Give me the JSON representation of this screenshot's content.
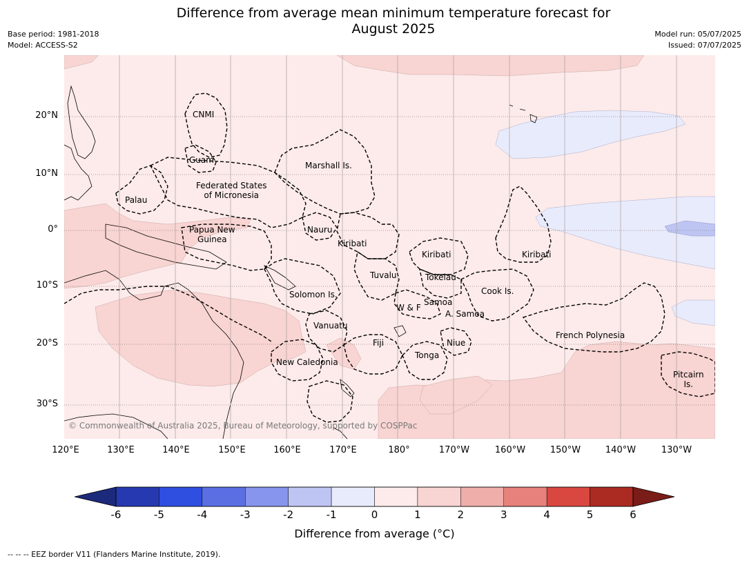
{
  "title_line1": "Difference from average mean minimum temperature forecast for",
  "title_line2": "August 2025",
  "meta": {
    "base_period": "Base period: 1981-2018",
    "model": "Model: ACCESS-S2",
    "model_run": "Model run: 05/07/2025",
    "issued": "Issued: 07/07/2025"
  },
  "axes": {
    "lat_labels": [
      "20°N",
      "10°N",
      "0°",
      "10°S",
      "20°S",
      "30°S"
    ],
    "lon_labels": [
      "120°E",
      "130°E",
      "140°E",
      "150°E",
      "160°E",
      "170°E",
      "180°",
      "170°W",
      "160°W",
      "150°W",
      "140°W",
      "130°W"
    ]
  },
  "places": {
    "cnmi": "CNMI",
    "guam": "Guam",
    "marshall": "Marshall Is.",
    "fsm_line1": "Federated States",
    "fsm_line2": "of Micronesia",
    "palau": "Palau",
    "png_line1": "Papua New",
    "png_line2": "Guinea",
    "nauru": "Nauru",
    "kiribati_west": "Kiribati",
    "kiribati_central": "Kiribati",
    "kiribati_east": "Kiribati",
    "tuvalu": "Tuvalu",
    "tokelau": "Tokelau",
    "cook": "Cook Is.",
    "solomon": "Solomon Is.",
    "samoa": "Samoa",
    "wf": "W & F",
    "asamoa": "A. Samoa",
    "vanuatu": "Vanuatu",
    "fiji": "Fiji",
    "niue": "Niue",
    "tonga": "Tonga",
    "french_polynesia": "French Polynesia",
    "new_caledonia": "New Caledonia",
    "pitcairn_line1": "Pitcairn",
    "pitcairn_line2": "Is."
  },
  "copyright": "© Commonwealth of Australia 2025, Bureau of Meteorology, supported by COSPPac",
  "colorbar": {
    "title": "Difference from average (°C)",
    "ticks": [
      "-6",
      "-5",
      "-4",
      "-3",
      "-2",
      "-1",
      "0",
      "1",
      "2",
      "3",
      "4",
      "5",
      "6"
    ],
    "colors": [
      "#2639b0",
      "#2f4fe0",
      "#5b6fe3",
      "#8795ec",
      "#bec5f3",
      "#e8ebfc",
      "#fcebea",
      "#f8d4d2",
      "#efaeaa",
      "#e6817b",
      "#d94840",
      "#ab2a22"
    ],
    "under_color": "#1c2a7c",
    "over_color": "#7a1c18"
  },
  "map_colors": {
    "base": "#fcebea",
    "warm": "#f8d4d2",
    "cool": "#e8ebfc",
    "cooler": "#bec5f3"
  },
  "footer": "--  --  -- EEZ border V11 (Flanders Marine Institute, 2019)."
}
